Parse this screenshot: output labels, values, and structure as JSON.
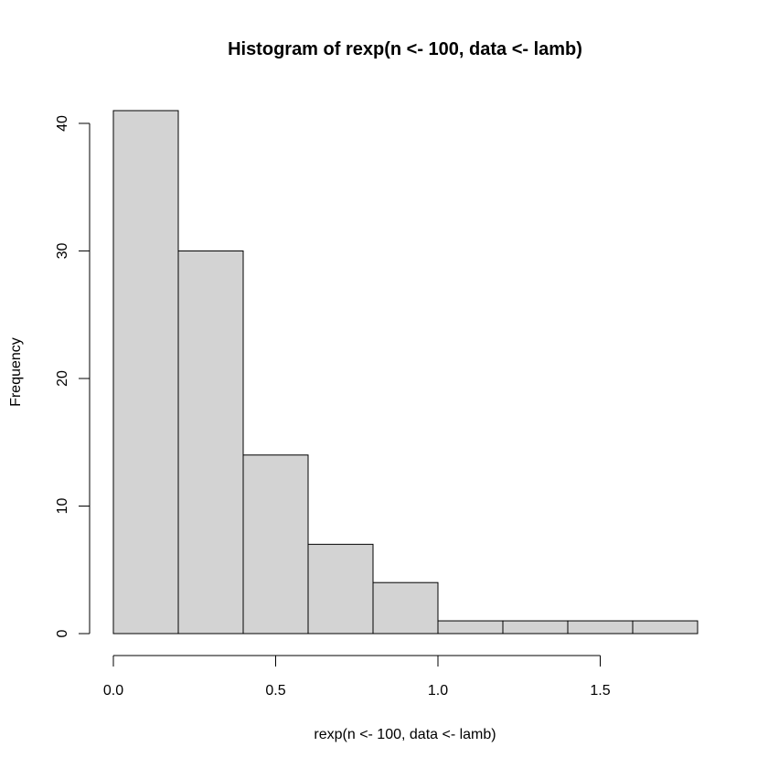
{
  "chart_data": {
    "type": "bar",
    "title": "Histogram of rexp(n <- 100, data <- lamb)",
    "xlabel": "rexp(n <- 100, data <- lamb)",
    "ylabel": "Frequency",
    "bins": [
      {
        "x0": 0.0,
        "x1": 0.2,
        "count": 41
      },
      {
        "x0": 0.2,
        "x1": 0.4,
        "count": 30
      },
      {
        "x0": 0.4,
        "x1": 0.6,
        "count": 14
      },
      {
        "x0": 0.6,
        "x1": 0.8,
        "count": 7
      },
      {
        "x0": 0.8,
        "x1": 1.0,
        "count": 4
      },
      {
        "x0": 1.0,
        "x1": 1.2,
        "count": 1
      },
      {
        "x0": 1.2,
        "x1": 1.4,
        "count": 1
      },
      {
        "x0": 1.4,
        "x1": 1.6,
        "count": 1
      },
      {
        "x0": 1.6,
        "x1": 1.8,
        "count": 1
      }
    ],
    "xlim": [
      0.0,
      1.8
    ],
    "ylim": [
      0,
      41
    ],
    "x_ticks": [
      {
        "value": 0.0,
        "label": "0.0"
      },
      {
        "value": 0.5,
        "label": "0.5"
      },
      {
        "value": 1.0,
        "label": "1.0"
      },
      {
        "value": 1.5,
        "label": "1.5"
      }
    ],
    "y_ticks": [
      {
        "value": 0,
        "label": "0"
      },
      {
        "value": 10,
        "label": "10"
      },
      {
        "value": 20,
        "label": "20"
      },
      {
        "value": 30,
        "label": "30"
      },
      {
        "value": 40,
        "label": "40"
      }
    ],
    "bar_color": "#d3d3d3",
    "border_color": "#000000",
    "grid": false
  }
}
